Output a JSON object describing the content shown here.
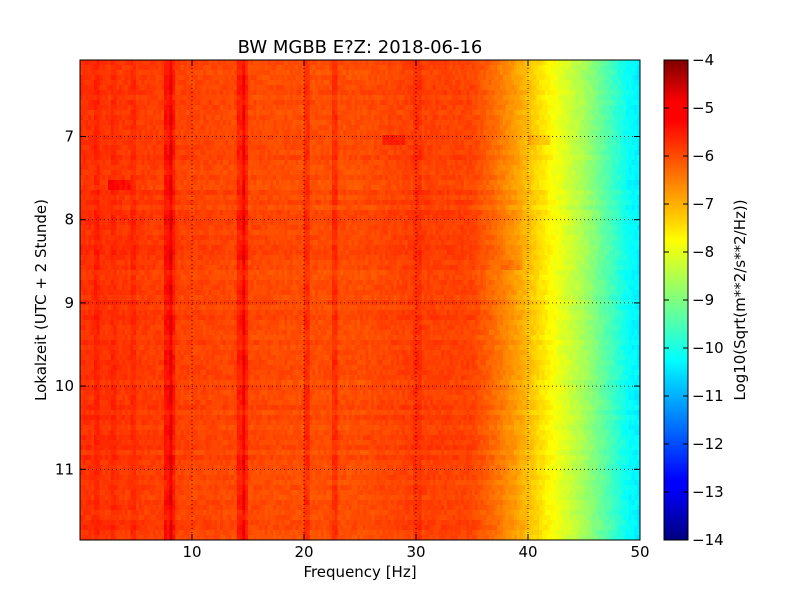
{
  "chart_data": {
    "type": "heatmap",
    "title": "BW MGBB E?Z: 2018-06-16",
    "xlabel": "Frequency [Hz]",
    "ylabel": "Lokalzeit (UTC + 2 Stunde)",
    "xlim": [
      0,
      50
    ],
    "ylim": [
      11.85,
      6.08
    ],
    "y_inverted": true,
    "x_ticks": [
      10,
      20,
      30,
      40,
      50
    ],
    "y_ticks": [
      7,
      8,
      9,
      10,
      11
    ],
    "grid": true,
    "colorbar": {
      "label": "Log10(Sqrt(m**2/s**2/Hz))",
      "range": [
        -14,
        -4
      ],
      "ticks": [
        -4,
        -5,
        -6,
        -7,
        -8,
        -9,
        -10,
        -11,
        -12,
        -13,
        -14
      ],
      "colormap": "jet"
    },
    "spectral_profile": {
      "frequency_hz": [
        0,
        5,
        10,
        20,
        25,
        30,
        35,
        37,
        39,
        41,
        43,
        45,
        47,
        49,
        50
      ],
      "value_log10": [
        -5.7,
        -5.8,
        -5.9,
        -6.0,
        -6.0,
        -5.85,
        -5.9,
        -6.3,
        -6.8,
        -7.4,
        -8.0,
        -8.6,
        -9.4,
        -10.2,
        -10.4
      ]
    },
    "vertical_lines_hz": [
      {
        "freq": 1.5,
        "delta": 0.2
      },
      {
        "freq": 3.0,
        "delta": 0.15
      },
      {
        "freq": 4.8,
        "delta": 0.2
      },
      {
        "freq": 7.9,
        "delta": 0.55
      },
      {
        "freq": 8.3,
        "delta": 0.45
      },
      {
        "freq": 14.4,
        "delta": 0.5
      },
      {
        "freq": 14.8,
        "delta": 0.45
      },
      {
        "freq": 20.2,
        "delta": 0.4
      },
      {
        "freq": 22.7,
        "delta": 0.4
      },
      {
        "freq": 30.1,
        "delta": 0.2
      }
    ],
    "patches": [
      {
        "freq": 3.5,
        "hour": 7.6,
        "delta": 0.5
      },
      {
        "freq": 28.0,
        "hour": 7.05,
        "delta": 0.35
      },
      {
        "freq": 38.5,
        "hour": 8.53,
        "delta": 0.3
      },
      {
        "freq": 41.0,
        "hour": 7.05,
        "delta": 0.3
      }
    ]
  }
}
